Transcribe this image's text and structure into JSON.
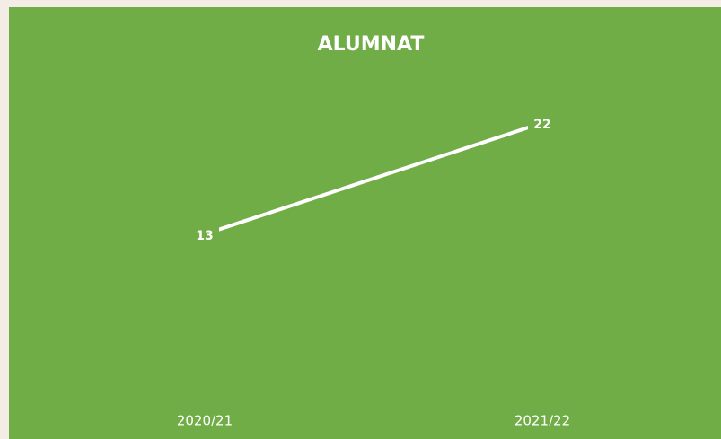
{
  "chart_data": {
    "type": "line",
    "title": "ALUMNAT",
    "categories": [
      "2020/21",
      "2021/22"
    ],
    "series": [
      {
        "name": "ALUMNAT",
        "color": "#ffffff",
        "values": [
          13,
          22
        ]
      }
    ],
    "ylim": [
      0,
      25
    ],
    "background": "#70ad47",
    "drop_lines": true
  }
}
